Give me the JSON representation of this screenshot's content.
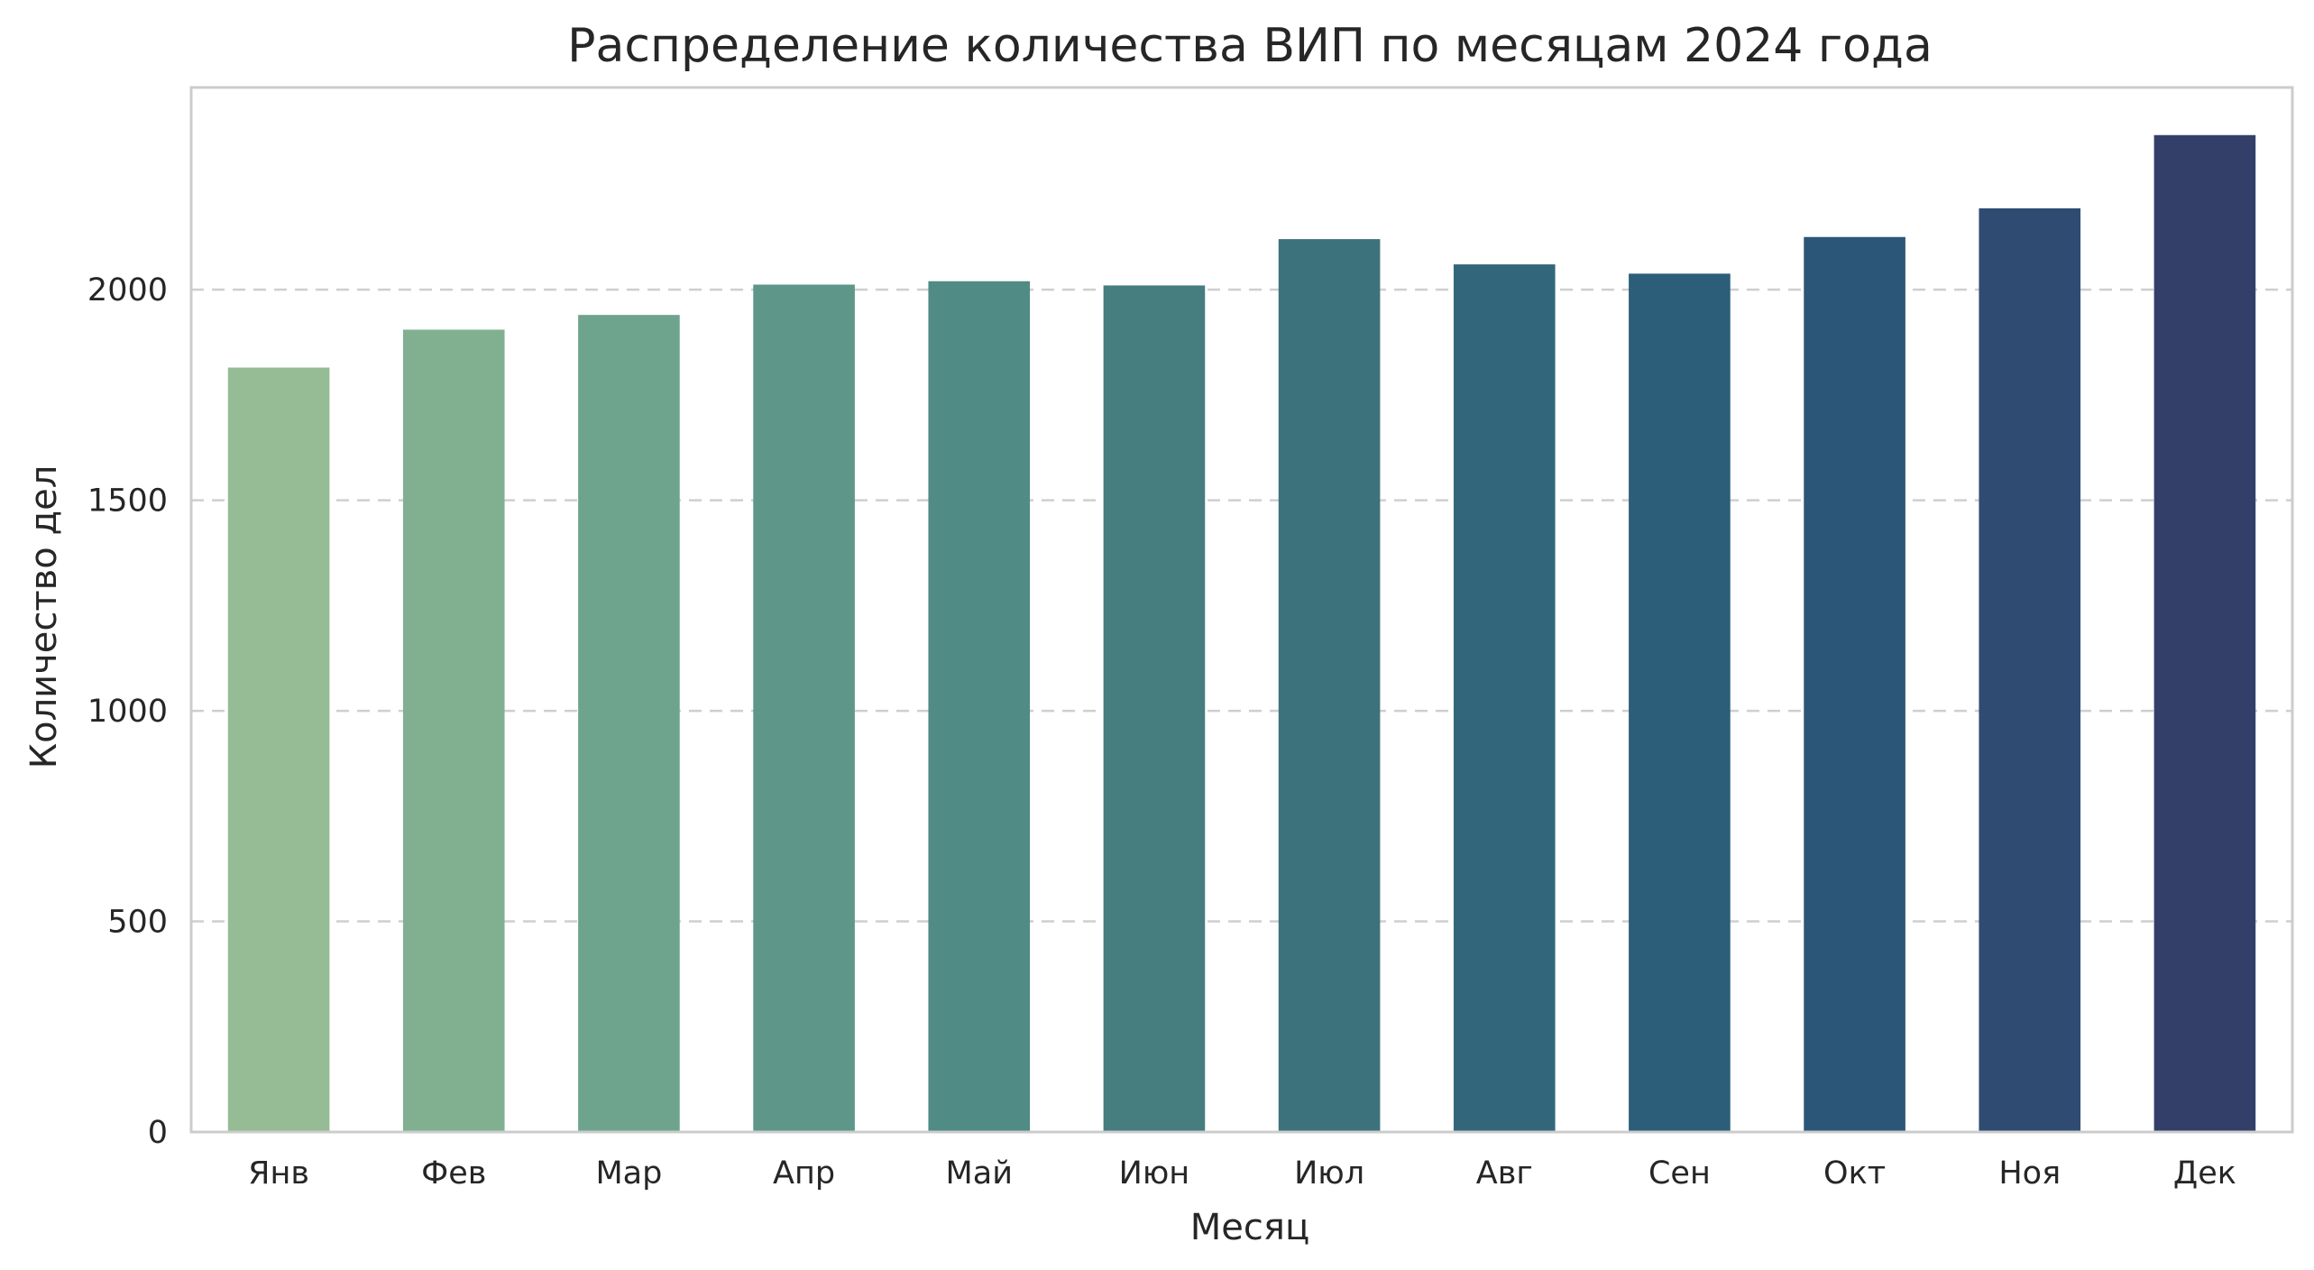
{
  "chart_data": {
    "type": "bar",
    "title": "Распределение количества ВИП по месяцам 2024 года",
    "xlabel": "Месяц",
    "ylabel": "Количество дел",
    "categories": [
      "Янв",
      "Фев",
      "Мар",
      "Апр",
      "Май",
      "Июн",
      "Июл",
      "Авг",
      "Сен",
      "Окт",
      "Ноя",
      "Дек"
    ],
    "values": [
      1815,
      1905,
      1940,
      2012,
      2020,
      2010,
      2120,
      2060,
      2038,
      2125,
      2193,
      2367
    ],
    "yticks": [
      0,
      500,
      1000,
      1500,
      2000
    ],
    "ylim": [
      0,
      2480
    ],
    "grid": "y, dashed",
    "colors": [
      "#95bc94",
      "#81b091",
      "#6ea48e",
      "#5e978a",
      "#508b85",
      "#467d7f",
      "#3c727c",
      "#32677b",
      "#2c5e7a",
      "#2c5678",
      "#2f4b72",
      "#333f69"
    ]
  }
}
